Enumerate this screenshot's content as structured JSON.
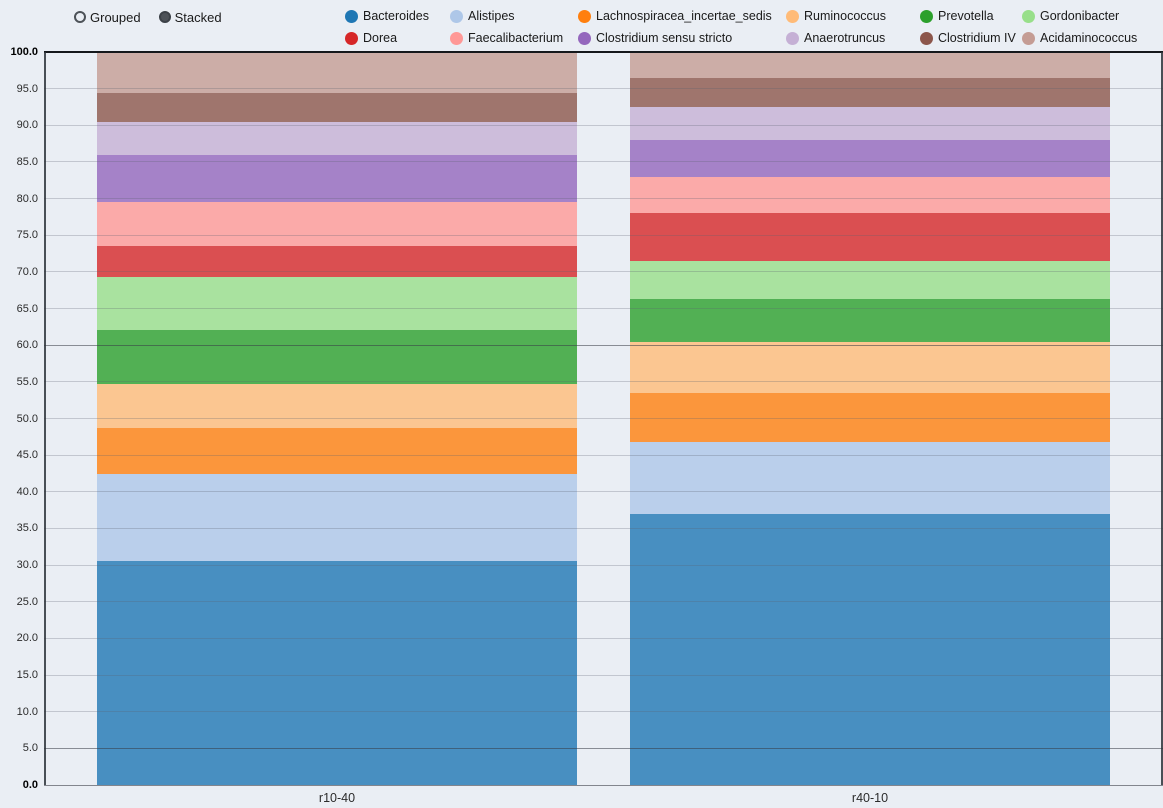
{
  "controls": {
    "grouped_label": "Grouped",
    "stacked_label": "Stacked",
    "selected": "Stacked"
  },
  "chart_data": {
    "type": "bar",
    "mode": "stacked",
    "orientation": "vertical",
    "categories": [
      "r10-40",
      "r40-10"
    ],
    "series": [
      {
        "name": "Bacteroides",
        "color": "#1f77b4",
        "values": [
          30.6,
          37.0
        ]
      },
      {
        "name": "Alistipes",
        "color": "#aec7e8",
        "values": [
          11.8,
          9.8
        ]
      },
      {
        "name": "Lachnospiracea_incertae_sedis",
        "color": "#ff7f0e",
        "values": [
          6.3,
          6.7
        ]
      },
      {
        "name": "Ruminococcus",
        "color": "#ffbb78",
        "values": [
          6.0,
          6.9
        ]
      },
      {
        "name": "Prevotella",
        "color": "#2ca02c",
        "values": [
          7.4,
          5.9
        ]
      },
      {
        "name": "Gordonibacter",
        "color": "#98df8a",
        "values": [
          7.2,
          5.2
        ]
      },
      {
        "name": "Dorea",
        "color": "#d62728",
        "values": [
          4.2,
          6.5
        ]
      },
      {
        "name": "Faecalibacterium",
        "color": "#ff9896",
        "values": [
          6.0,
          4.9
        ]
      },
      {
        "name": "Clostridium sensu stricto",
        "color": "#9467bd",
        "values": [
          6.5,
          5.1
        ]
      },
      {
        "name": "Anaerotruncus",
        "color": "#c5b0d5",
        "values": [
          4.4,
          4.5
        ]
      },
      {
        "name": "Clostridium IV",
        "color": "#8c564b",
        "values": [
          4.0,
          4.0
        ]
      },
      {
        "name": "Acidaminococcus",
        "color": "#c49c94",
        "values": [
          5.6,
          3.5
        ]
      }
    ],
    "ylim": [
      0,
      100
    ],
    "ytick_step": 5,
    "ytick_labels": [
      "0.0",
      "5.0",
      "10.0",
      "15.0",
      "20.0",
      "25.0",
      "30.0",
      "35.0",
      "40.0",
      "45.0",
      "50.0",
      "55.0",
      "60.0",
      "65.0",
      "70.0",
      "75.0",
      "80.0",
      "85.0",
      "90.0",
      "95.0",
      "100.0"
    ],
    "strong_gridlines": [
      5,
      60
    ],
    "grid": true,
    "legend_position": "top",
    "bar_opacity": 0.8,
    "title": "",
    "xlabel": "",
    "ylabel": ""
  }
}
